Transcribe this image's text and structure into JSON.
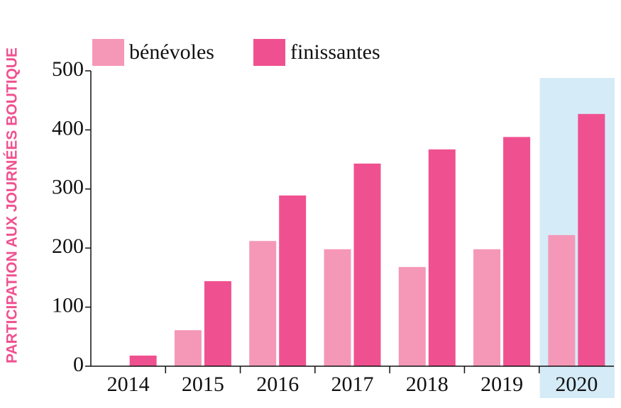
{
  "chart_data": {
    "type": "bar",
    "y_label": "PARTICIPATION AUX JOURNÉES BOUTIQUE",
    "categories": [
      "2014",
      "2015",
      "2016",
      "2017",
      "2018",
      "2019",
      "2020"
    ],
    "series": [
      {
        "name": "bénévoles",
        "color": "#f598b8",
        "values": [
          0,
          61,
          212,
          198,
          168,
          198,
          222
        ]
      },
      {
        "name": "finissantes",
        "color": "#ef5190",
        "values": [
          18,
          144,
          289,
          343,
          367,
          388,
          427
        ]
      }
    ],
    "ylim": [
      0,
      500
    ],
    "yticks": [
      0,
      100,
      200,
      300,
      400,
      500
    ],
    "highlight": "2020",
    "highlight_color": "#d5ebf8",
    "legend": "top-left",
    "grid": false
  }
}
